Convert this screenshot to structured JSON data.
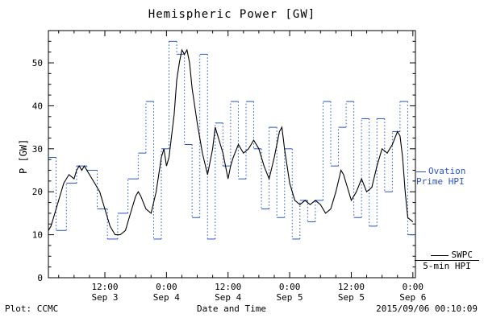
{
  "title": "Hemispheric Power [GW]",
  "ylabel": "P [GW]",
  "footer": {
    "left": "Plot: CCMC",
    "xlabel": "Date and Time",
    "timestamp": "2015/09/06 00:10:09"
  },
  "legend": {
    "ovation": {
      "line1": "Ovation",
      "line2": "Prime HPI",
      "color": "#2a55c8"
    },
    "swpc": {
      "line1": "SWPC",
      "line2": "5-min HPI",
      "color": "#000000"
    }
  },
  "chart_data": {
    "type": "line",
    "title": "Hemispheric Power [GW]",
    "xlabel": "Date and Time",
    "ylabel": "P [GW]",
    "ylim": [
      0,
      57.5
    ],
    "xlim_hours": [
      1,
      72.5
    ],
    "x_origin": "Sep 3 00:00",
    "grid": false,
    "legend_position": "right-outside",
    "y_ticks": [
      {
        "value": 0,
        "label": "0"
      },
      {
        "value": 10,
        "label": "10"
      },
      {
        "value": 20,
        "label": "20"
      },
      {
        "value": 30,
        "label": "30"
      },
      {
        "value": 40,
        "label": "40"
      },
      {
        "value": 50,
        "label": "50"
      }
    ],
    "x_ticks": [
      {
        "hour": 12,
        "time": "12:00",
        "date": "Sep 3"
      },
      {
        "hour": 24,
        "time": "0:00",
        "date": "Sep 4"
      },
      {
        "hour": 36,
        "time": "12:00",
        "date": "Sep 4"
      },
      {
        "hour": 48,
        "time": "0:00",
        "date": "Sep 5"
      },
      {
        "hour": 60,
        "time": "12:00",
        "date": "Sep 5"
      },
      {
        "hour": 72,
        "time": "0:00",
        "date": "Sep 6"
      }
    ],
    "series": [
      {
        "name": "SWPC 5-min HPI",
        "style": "solid",
        "color": "#000000",
        "points": [
          [
            1,
            11
          ],
          [
            1.5,
            12
          ],
          [
            2,
            14
          ],
          [
            3,
            18
          ],
          [
            4,
            22
          ],
          [
            5,
            24
          ],
          [
            6,
            23
          ],
          [
            6.5,
            25
          ],
          [
            7,
            26
          ],
          [
            7.5,
            25
          ],
          [
            8,
            26
          ],
          [
            9,
            24
          ],
          [
            10,
            22
          ],
          [
            11,
            20
          ],
          [
            12,
            16
          ],
          [
            13,
            12
          ],
          [
            14,
            10
          ],
          [
            15,
            10
          ],
          [
            16,
            11
          ],
          [
            17,
            15
          ],
          [
            18,
            19
          ],
          [
            18.5,
            20
          ],
          [
            19,
            19
          ],
          [
            20,
            16
          ],
          [
            21,
            15
          ],
          [
            22,
            20
          ],
          [
            23,
            28
          ],
          [
            23.5,
            30
          ],
          [
            24,
            26
          ],
          [
            24.5,
            28
          ],
          [
            25,
            33
          ],
          [
            25.5,
            38
          ],
          [
            26,
            46
          ],
          [
            26.5,
            50
          ],
          [
            27,
            53
          ],
          [
            27.5,
            52
          ],
          [
            28,
            53
          ],
          [
            28.5,
            50
          ],
          [
            29,
            44
          ],
          [
            30,
            36
          ],
          [
            31,
            29
          ],
          [
            32,
            24
          ],
          [
            33,
            30
          ],
          [
            33.5,
            35
          ],
          [
            34,
            33
          ],
          [
            35,
            29
          ],
          [
            36,
            23
          ],
          [
            36.5,
            26
          ],
          [
            37,
            28
          ],
          [
            38,
            31
          ],
          [
            39,
            29
          ],
          [
            40,
            30
          ],
          [
            41,
            32
          ],
          [
            42,
            30
          ],
          [
            43,
            26
          ],
          [
            44,
            23
          ],
          [
            45,
            28
          ],
          [
            46,
            34
          ],
          [
            46.5,
            35
          ],
          [
            47,
            30
          ],
          [
            48,
            22
          ],
          [
            49,
            18
          ],
          [
            50,
            17
          ],
          [
            51,
            18
          ],
          [
            52,
            17
          ],
          [
            53,
            18
          ],
          [
            54,
            17
          ],
          [
            55,
            15
          ],
          [
            56,
            16
          ],
          [
            57,
            20
          ],
          [
            58,
            25
          ],
          [
            58.5,
            24
          ],
          [
            59,
            22
          ],
          [
            60,
            18
          ],
          [
            61,
            20
          ],
          [
            62,
            23
          ],
          [
            63,
            20
          ],
          [
            64,
            21
          ],
          [
            65,
            26
          ],
          [
            66,
            30
          ],
          [
            67,
            29
          ],
          [
            68,
            31
          ],
          [
            69,
            34
          ],
          [
            69.5,
            33
          ],
          [
            70,
            28
          ],
          [
            70.5,
            20
          ],
          [
            71,
            14
          ],
          [
            72,
            13
          ]
        ]
      },
      {
        "name": "Ovation Prime HPI",
        "style": "step-dotted-connectors",
        "color": "#2a55c8",
        "steps": [
          [
            1,
            2.5,
            28
          ],
          [
            2.5,
            4.5,
            11
          ],
          [
            4.5,
            6.5,
            22
          ],
          [
            6.5,
            8.5,
            26
          ],
          [
            8.5,
            10.5,
            25
          ],
          [
            10.5,
            12.5,
            16
          ],
          [
            12.5,
            14.5,
            9
          ],
          [
            14.5,
            16.5,
            15
          ],
          [
            16.5,
            18.5,
            23
          ],
          [
            18.5,
            20,
            29
          ],
          [
            20,
            21.5,
            41
          ],
          [
            21.5,
            23,
            9
          ],
          [
            23,
            24.5,
            30
          ],
          [
            24.5,
            26,
            55
          ],
          [
            26,
            27.5,
            52
          ],
          [
            27.5,
            29,
            31
          ],
          [
            29,
            30.5,
            14
          ],
          [
            30.5,
            32,
            52
          ],
          [
            32,
            33.5,
            9
          ],
          [
            33.5,
            35,
            36
          ],
          [
            35,
            36.5,
            26
          ],
          [
            36.5,
            38,
            41
          ],
          [
            38,
            39.5,
            23
          ],
          [
            39.5,
            41,
            41
          ],
          [
            41,
            42.5,
            30
          ],
          [
            42.5,
            44,
            16
          ],
          [
            44,
            45.5,
            35
          ],
          [
            45.5,
            47,
            14
          ],
          [
            47,
            48.5,
            30
          ],
          [
            48.5,
            50,
            9
          ],
          [
            50,
            51.5,
            18
          ],
          [
            51.5,
            53,
            13
          ],
          [
            53,
            54.5,
            18
          ],
          [
            54.5,
            56,
            41
          ],
          [
            56,
            57.5,
            26
          ],
          [
            57.5,
            59,
            35
          ],
          [
            59,
            60.5,
            41
          ],
          [
            60.5,
            62,
            14
          ],
          [
            62,
            63.5,
            37
          ],
          [
            63.5,
            65,
            12
          ],
          [
            65,
            66.5,
            37
          ],
          [
            66.5,
            68,
            20
          ],
          [
            68,
            69.5,
            34
          ],
          [
            69.5,
            71,
            41
          ],
          [
            71,
            72.5,
            10
          ]
        ]
      }
    ]
  }
}
